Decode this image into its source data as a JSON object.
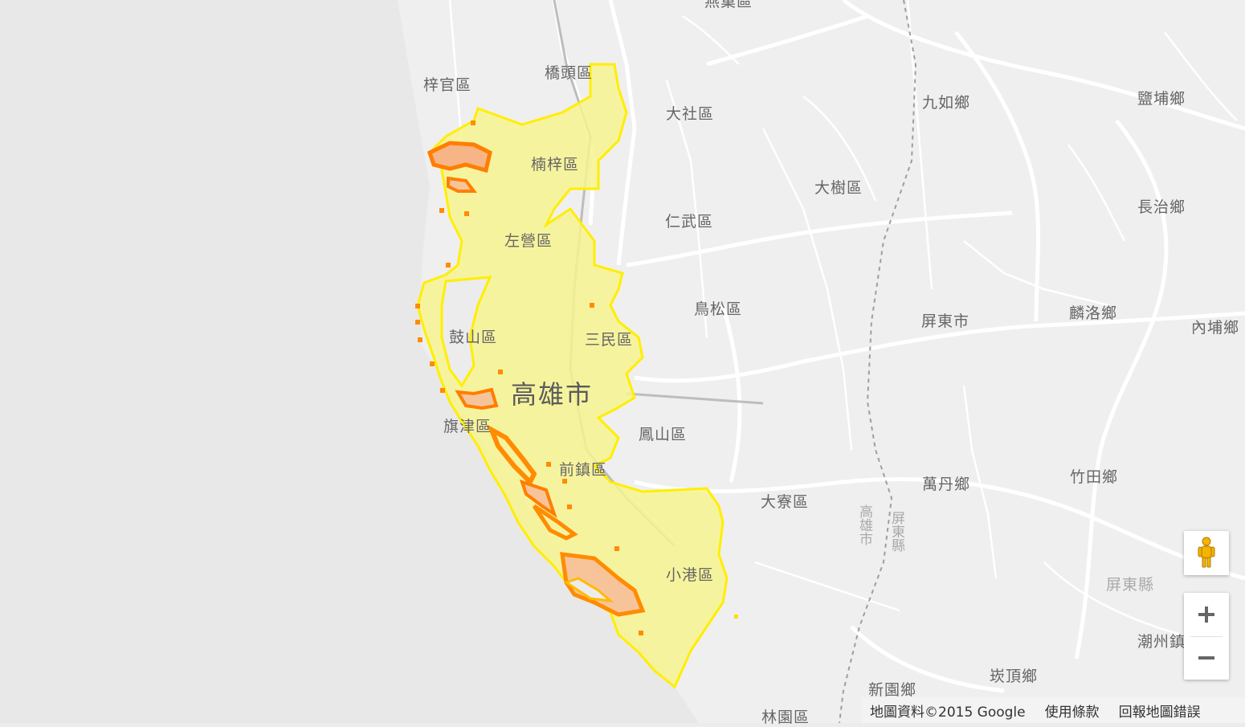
{
  "map": {
    "city_label": "高雄市",
    "labels": [
      {
        "id": "zuoying-north",
        "text": "梓官區"
      },
      {
        "id": "qiaotou",
        "text": "橋頭區"
      },
      {
        "id": "yanchao",
        "text": "燕巢區"
      },
      {
        "id": "dashe",
        "text": "大社區"
      },
      {
        "id": "jiuru",
        "text": "九如鄉"
      },
      {
        "id": "yanpu",
        "text": "鹽埔鄉"
      },
      {
        "id": "nanzi",
        "text": "楠梓區"
      },
      {
        "id": "dashu",
        "text": "大樹區"
      },
      {
        "id": "changzhi",
        "text": "長治鄉"
      },
      {
        "id": "renwu",
        "text": "仁武區"
      },
      {
        "id": "zuoying",
        "text": "左營區"
      },
      {
        "id": "niaosong",
        "text": "鳥松區"
      },
      {
        "id": "linluo",
        "text": "麟洛鄉"
      },
      {
        "id": "pingtung-city",
        "text": "屏東市"
      },
      {
        "id": "neipu",
        "text": "內埔鄉"
      },
      {
        "id": "gushan",
        "text": "鼓山區"
      },
      {
        "id": "sanmin",
        "text": "三民區"
      },
      {
        "id": "qijin",
        "text": "旗津區"
      },
      {
        "id": "fengshan",
        "text": "鳳山區"
      },
      {
        "id": "qianzhen",
        "text": "前鎮區"
      },
      {
        "id": "daliao",
        "text": "大寮區"
      },
      {
        "id": "wandan",
        "text": "萬丹鄉"
      },
      {
        "id": "zhutian",
        "text": "竹田鄉"
      },
      {
        "id": "xiaogang",
        "text": "小港區"
      },
      {
        "id": "pingtung-county",
        "text": "屏東縣"
      },
      {
        "id": "chaozhou",
        "text": "潮州鎮"
      },
      {
        "id": "kanding",
        "text": "崁頂鄉"
      },
      {
        "id": "xinyuan",
        "text": "新園鄉"
      },
      {
        "id": "linyuan",
        "text": "林園區"
      }
    ],
    "road_labels": {
      "kaohsiung_vertical": "高雄市",
      "pingtung_vertical": "屏東縣"
    }
  },
  "colors": {
    "background": "#ececec",
    "sea": "#e9e9e9",
    "roads": "#ffffff",
    "overlay_fill": "#f6f28c",
    "overlay_edge": "#ffeb00",
    "hotspot": "#ff8a00",
    "hotspot_dark": "#e85a00"
  },
  "controls": {
    "pegman_icon": "pegman-icon",
    "zoom_in_icon": "plus-icon",
    "zoom_out_icon": "minus-icon"
  },
  "footer": {
    "attribution": "地圖資料©2015 Google",
    "terms": "使用條款",
    "report": "回報地圖錯誤"
  }
}
